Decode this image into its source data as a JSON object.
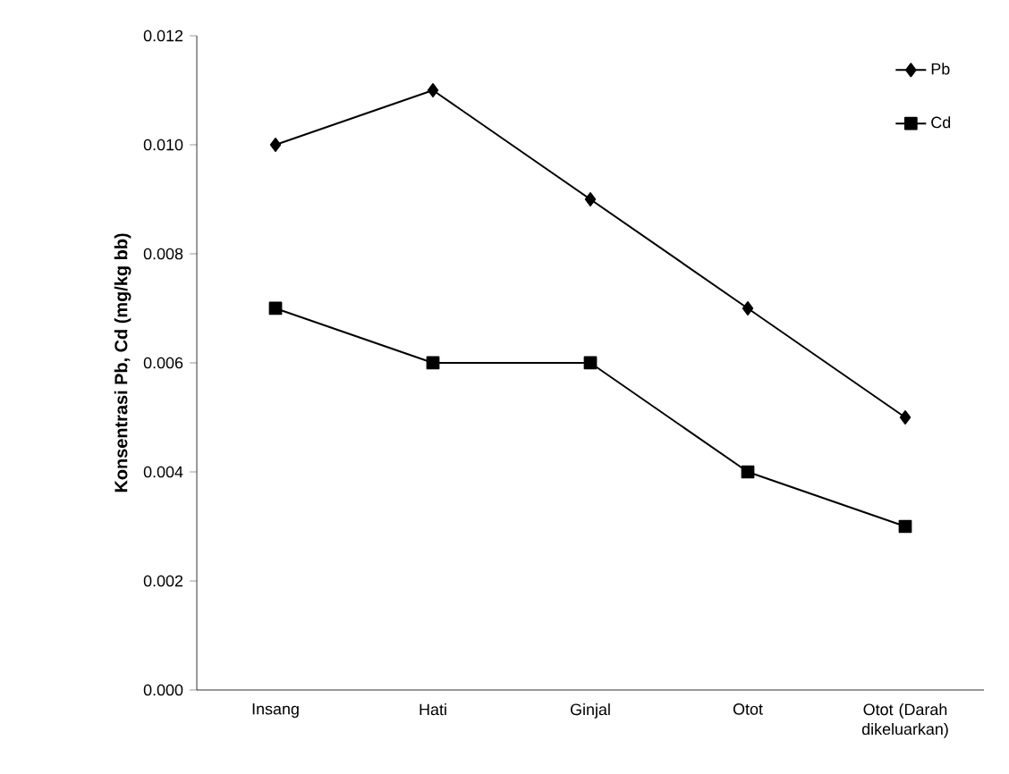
{
  "chart_data": {
    "type": "line",
    "ylabel": "Konsentrasi Pb, Cd (mg/kg bb)",
    "categories": [
      "Insang",
      "Hati",
      "Ginjal",
      "Otot",
      "Otot (Darah dikeluarkan)"
    ],
    "series": [
      {
        "name": "Pb",
        "color": "#000000",
        "marker": "diamond",
        "values": [
          0.01,
          0.011,
          0.009,
          0.007,
          0.005
        ]
      },
      {
        "name": "Cd",
        "color": "#000000",
        "marker": "square",
        "values": [
          0.007,
          0.006,
          0.006,
          0.004,
          0.003
        ]
      }
    ],
    "ylim": [
      0,
      0.012
    ],
    "yticks": [
      {
        "value": 0,
        "label": "0.000"
      },
      {
        "value": 0.002,
        "label": "0.002"
      },
      {
        "value": 0.004,
        "label": "0.004"
      },
      {
        "value": 0.006,
        "label": "0.006"
      },
      {
        "value": 0.008,
        "label": "0.008"
      },
      {
        "value": 0.01,
        "label": "0.010"
      },
      {
        "value": 0.012,
        "label": "0.012"
      }
    ],
    "legend": "top right",
    "grid": false
  }
}
